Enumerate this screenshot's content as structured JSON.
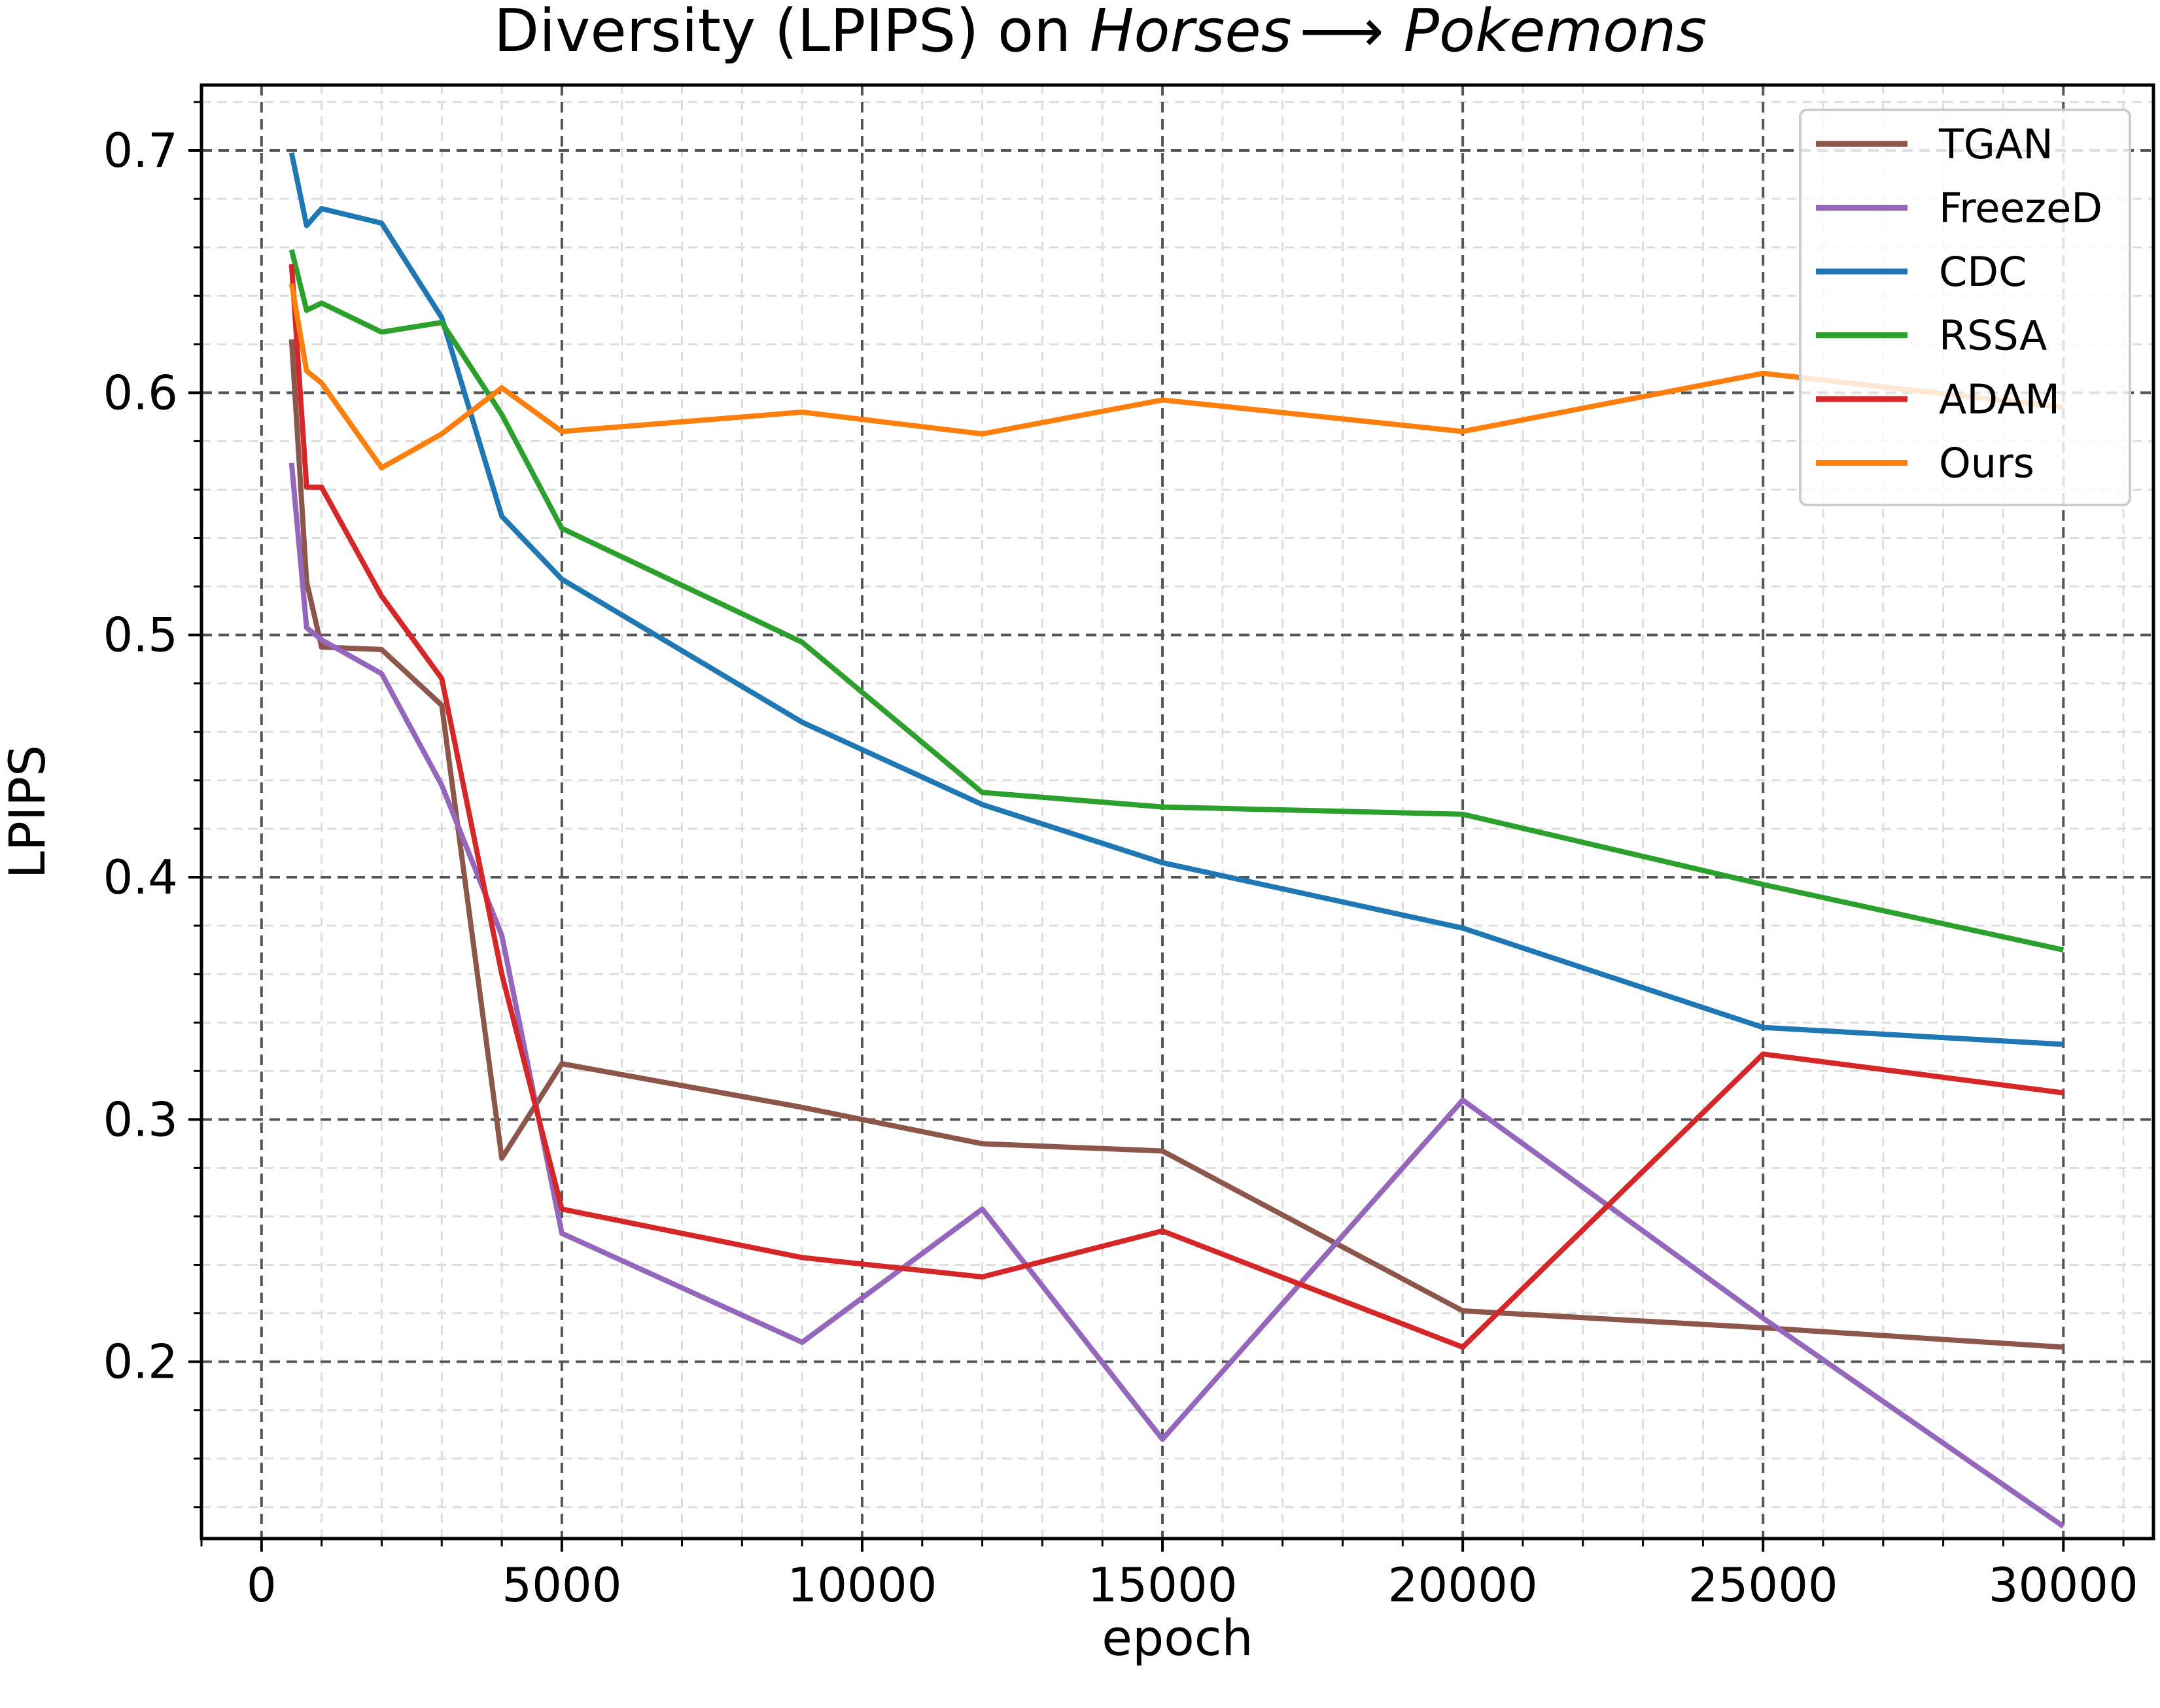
{
  "chart_data": {
    "type": "line",
    "title": {
      "prefix": "Diversity (LPIPS) on ",
      "source": "Horses",
      "arrow": "⟶",
      "target": "Pokemons"
    },
    "xlabel": "epoch",
    "ylabel": "LPIPS",
    "xlim": [
      -1000,
      31500
    ],
    "ylim": [
      0.127,
      0.727
    ],
    "x_ticks": [
      0,
      5000,
      10000,
      15000,
      20000,
      25000,
      30000
    ],
    "x_tick_labels": [
      "0",
      "5000",
      "10000",
      "15000",
      "20000",
      "25000",
      "30000"
    ],
    "y_ticks": [
      0.2,
      0.3,
      0.4,
      0.5,
      0.6,
      0.7
    ],
    "y_tick_labels": [
      "0.2",
      "0.3",
      "0.4",
      "0.5",
      "0.6",
      "0.7"
    ],
    "grid": true,
    "legend_position": "top-right",
    "x": [
      500,
      750,
      1000,
      2000,
      3000,
      4000,
      5000,
      9000,
      12000,
      15000,
      20000,
      25000,
      30000
    ],
    "series": [
      {
        "name": "TGAN",
        "color": "#8c564b",
        "values": [
          0.622,
          0.522,
          0.495,
          0.494,
          0.471,
          0.284,
          0.323,
          0.305,
          0.29,
          0.287,
          0.221,
          0.214,
          0.206
        ]
      },
      {
        "name": "FreezeD",
        "color": "#9467bd",
        "values": [
          0.571,
          0.503,
          0.498,
          0.484,
          0.438,
          0.376,
          0.253,
          0.208,
          0.263,
          0.168,
          0.308,
          0.218,
          0.132
        ]
      },
      {
        "name": "CDC",
        "color": "#1f77b4",
        "values": [
          0.699,
          0.669,
          0.676,
          0.67,
          0.631,
          0.549,
          0.523,
          0.464,
          0.43,
          0.406,
          0.379,
          0.338,
          0.331
        ]
      },
      {
        "name": "RSSA",
        "color": "#2ca02c",
        "values": [
          0.659,
          0.634,
          0.637,
          0.625,
          0.629,
          0.591,
          0.544,
          0.497,
          0.435,
          0.429,
          0.426,
          0.397,
          0.37
        ]
      },
      {
        "name": "ADAM",
        "color": "#d62728",
        "values": [
          0.653,
          0.561,
          0.561,
          0.516,
          0.482,
          0.36,
          0.263,
          0.243,
          0.235,
          0.254,
          0.206,
          0.327,
          0.311
        ]
      },
      {
        "name": "Ours",
        "color": "#ff7f0e",
        "values": [
          0.645,
          0.609,
          0.604,
          0.569,
          0.583,
          0.602,
          0.584,
          0.592,
          0.583,
          0.597,
          0.584,
          0.608,
          0.594
        ]
      }
    ]
  }
}
